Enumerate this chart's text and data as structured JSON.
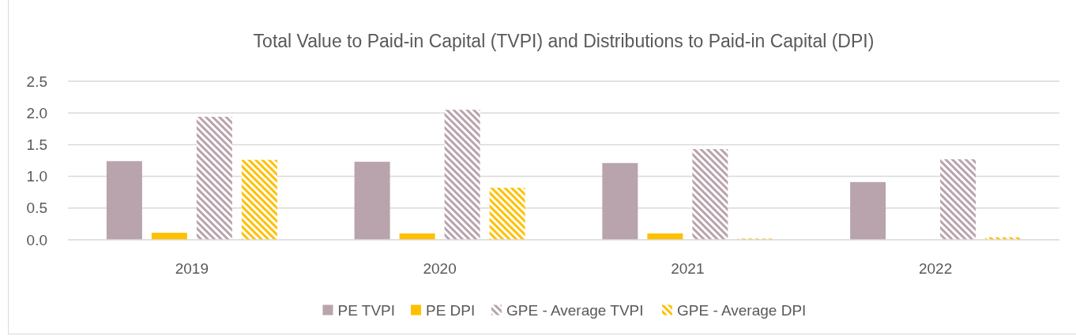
{
  "chart_data": {
    "type": "bar",
    "title": "Total Value to Paid-in Capital (TVPI) and Distributions to Paid-in Capital (DPI)",
    "categories": [
      "2019",
      "2020",
      "2021",
      "2022"
    ],
    "series": [
      {
        "name": "PE TVPI",
        "color": "#b9a3ad",
        "values": [
          1.24,
          1.23,
          1.21,
          0.91
        ]
      },
      {
        "name": "PE DPI",
        "color": "#ffc000",
        "values": [
          0.11,
          0.1,
          0.1,
          0
        ]
      },
      {
        "name": "GPE - Average TVPI",
        "color": "#b9a3ad",
        "values": [
          1.94,
          2.05,
          1.43,
          1.27
        ]
      },
      {
        "name": "GPE - Average DPI",
        "color": "#ffc000",
        "values": [
          1.26,
          0.82,
          0.02,
          0.04
        ]
      }
    ],
    "ylim": [
      0,
      2.5
    ],
    "yticks": [
      {
        "value": 0,
        "label": "0.0"
      },
      0.5,
      {
        "value": 1,
        "label": "1.0"
      },
      1.5,
      {
        "value": 2,
        "label": "2.0"
      },
      2.5
    ],
    "grid": "y",
    "legend": "bottom"
  }
}
